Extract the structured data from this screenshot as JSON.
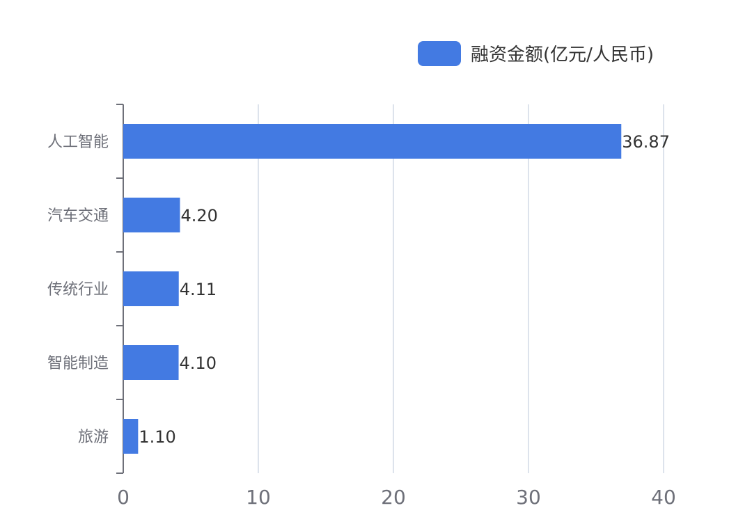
{
  "legend": {
    "label": "融资金额(亿元/人民币)"
  },
  "colors": {
    "bar": "#437ae2",
    "grid": "#dde3ec",
    "axis": "#6e7079",
    "tick_text": "#6e7079",
    "value_text": "#333333"
  },
  "chart_data": {
    "type": "bar",
    "orientation": "horizontal",
    "categories": [
      "人工智能",
      "汽车交通",
      "传统行业",
      "智能制造",
      "旅游"
    ],
    "series": [
      {
        "name": "融资金额(亿元/人民币)",
        "values": [
          36.87,
          4.2,
          4.11,
          4.1,
          1.1
        ],
        "value_labels": [
          "36.87",
          "4.20",
          "4.11",
          "4.10",
          "1.10"
        ]
      }
    ],
    "x_ticks": [
      "0",
      "10",
      "20",
      "30",
      "40"
    ],
    "xlim": [
      0,
      40
    ],
    "grid": true,
    "legend_position": "top-right"
  }
}
